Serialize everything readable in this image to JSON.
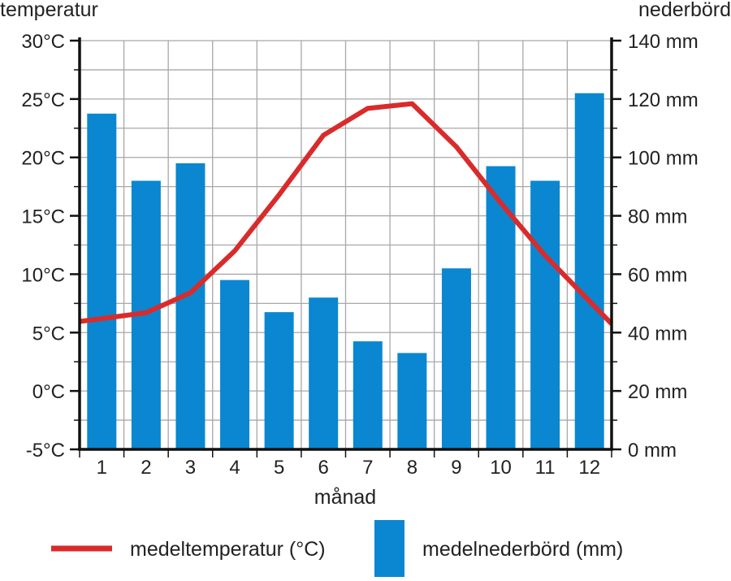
{
  "chart_data": {
    "type": "bar+line",
    "categories": [
      "1",
      "2",
      "3",
      "4",
      "5",
      "6",
      "7",
      "8",
      "9",
      "10",
      "11",
      "12"
    ],
    "xlabel": "månad",
    "ylabel_left": "temperatur",
    "ylabel_right": "nederbörd",
    "left_axis": {
      "range": [
        -5,
        30
      ],
      "ticks": [
        -5,
        0,
        5,
        10,
        15,
        20,
        25,
        30
      ],
      "tick_labels": [
        "-5°C",
        "0°C",
        "5°C",
        "10°C",
        "15°C",
        "20°C",
        "25°C",
        "30°C"
      ]
    },
    "right_axis": {
      "range": [
        0,
        140
      ],
      "ticks": [
        0,
        20,
        40,
        60,
        80,
        100,
        120,
        140
      ],
      "tick_labels": [
        "0 mm",
        "20 mm",
        "40 mm",
        "60 mm",
        "80 mm",
        "100 mm",
        "120 mm",
        "140 mm"
      ]
    },
    "grid": true,
    "series": [
      {
        "name": "medeltemperatur (°C)",
        "type": "line",
        "axis": "left",
        "color": "#d92b2b",
        "values": [
          6.2,
          6.7,
          8.4,
          12.0,
          16.8,
          21.9,
          24.2,
          24.6,
          20.9,
          16.1,
          11.6,
          7.7
        ]
      },
      {
        "name": "medelnederbörd (mm)",
        "type": "bar",
        "axis": "right",
        "color": "#0a87d0",
        "values": [
          115,
          92,
          98,
          58,
          47,
          52,
          37,
          33,
          62,
          97,
          92,
          122
        ]
      }
    ],
    "legend_position": "bottom"
  }
}
